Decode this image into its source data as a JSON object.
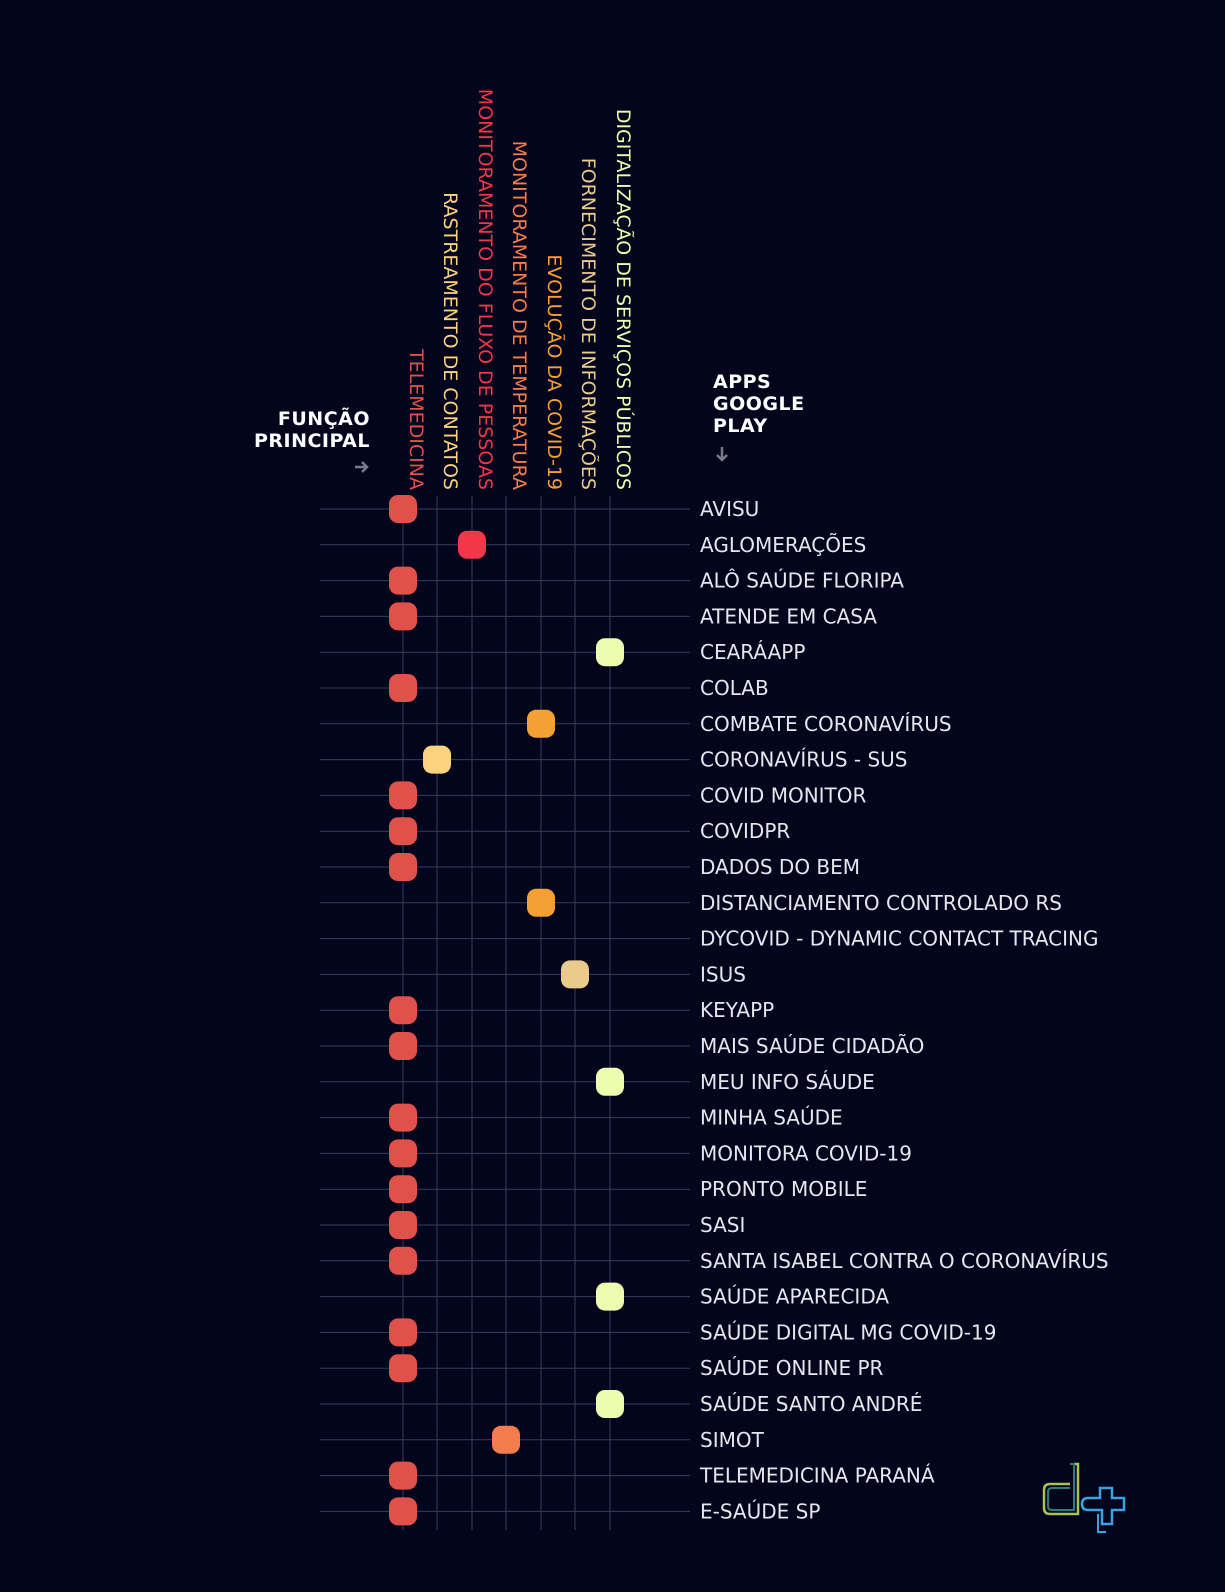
{
  "header": {
    "funcao_line1": "FUNÇÃO",
    "funcao_line2": "PRINCIPAL",
    "apps_line1": "APPS",
    "apps_line2": "GOOGLE",
    "apps_line3": "PLAY"
  },
  "chart_data": {
    "type": "scatter",
    "categories": [
      "TELEMEDICINA",
      "RASTREAMENTO DE CONTATOS",
      "MONITORAMENTO DO FLUXO DE PESSOAS",
      "MONITORAMENTO DE TEMPERATURA",
      "EVOLUÇÃO DA COVID-19",
      "FORNECIMENTO DE INFORMAÇÕES",
      "DIGITALIZAÇÃO DE SERVIÇOS PÚBLICOS"
    ],
    "category_colors": [
      "#e0514b",
      "#fdd27e",
      "#f2374a",
      "#f57c4c",
      "#f5a032",
      "#ebcb8b",
      "#eefcb0"
    ],
    "apps": [
      {
        "name": "AVISU",
        "category": 0
      },
      {
        "name": "AGLOMERAÇÕES",
        "category": 2
      },
      {
        "name": "ALÔ SAÚDE FLORIPA",
        "category": 0
      },
      {
        "name": "ATENDE EM CASA",
        "category": 0
      },
      {
        "name": "CEARÁAPP",
        "category": 6
      },
      {
        "name": "COLAB",
        "category": 0
      },
      {
        "name": "COMBATE CORONAVÍRUS",
        "category": 4
      },
      {
        "name": "CORONAVÍRUS - SUS",
        "category": 1
      },
      {
        "name": "COVID MONITOR",
        "category": 0
      },
      {
        "name": "COVIDPR",
        "category": 0
      },
      {
        "name": "DADOS DO BEM",
        "category": 0
      },
      {
        "name": "DISTANCIAMENTO CONTROLADO RS",
        "category": 4
      },
      {
        "name": "DYCOVID - DYNAMIC CONTACT TRACING",
        "category": null
      },
      {
        "name": "ISUS",
        "category": 5
      },
      {
        "name": "KEYAPP",
        "category": 0
      },
      {
        "name": "MAIS SAÚDE CIDADÃO",
        "category": 0
      },
      {
        "name": "MEU INFO SÁUDE",
        "category": 6
      },
      {
        "name": "MINHA SAÚDE",
        "category": 0
      },
      {
        "name": "MONITORA COVID-19",
        "category": 0
      },
      {
        "name": "PRONTO MOBILE",
        "category": 0
      },
      {
        "name": "SASI",
        "category": 0
      },
      {
        "name": "SANTA ISABEL CONTRA O CORONAVÍRUS",
        "category": 0
      },
      {
        "name": "SAÚDE APARECIDA",
        "category": 6
      },
      {
        "name": "SAÚDE DIGITAL MG COVID-19",
        "category": 0
      },
      {
        "name": "SAÚDE ONLINE PR",
        "category": 0
      },
      {
        "name": "SAÚDE SANTO ANDRÉ",
        "category": 6
      },
      {
        "name": "SIMOT",
        "category": 3
      },
      {
        "name": "TELEMEDICINA PARANÁ",
        "category": 0
      },
      {
        "name": "E-SAÚDE SP",
        "category": 0
      }
    ],
    "grid": true
  }
}
